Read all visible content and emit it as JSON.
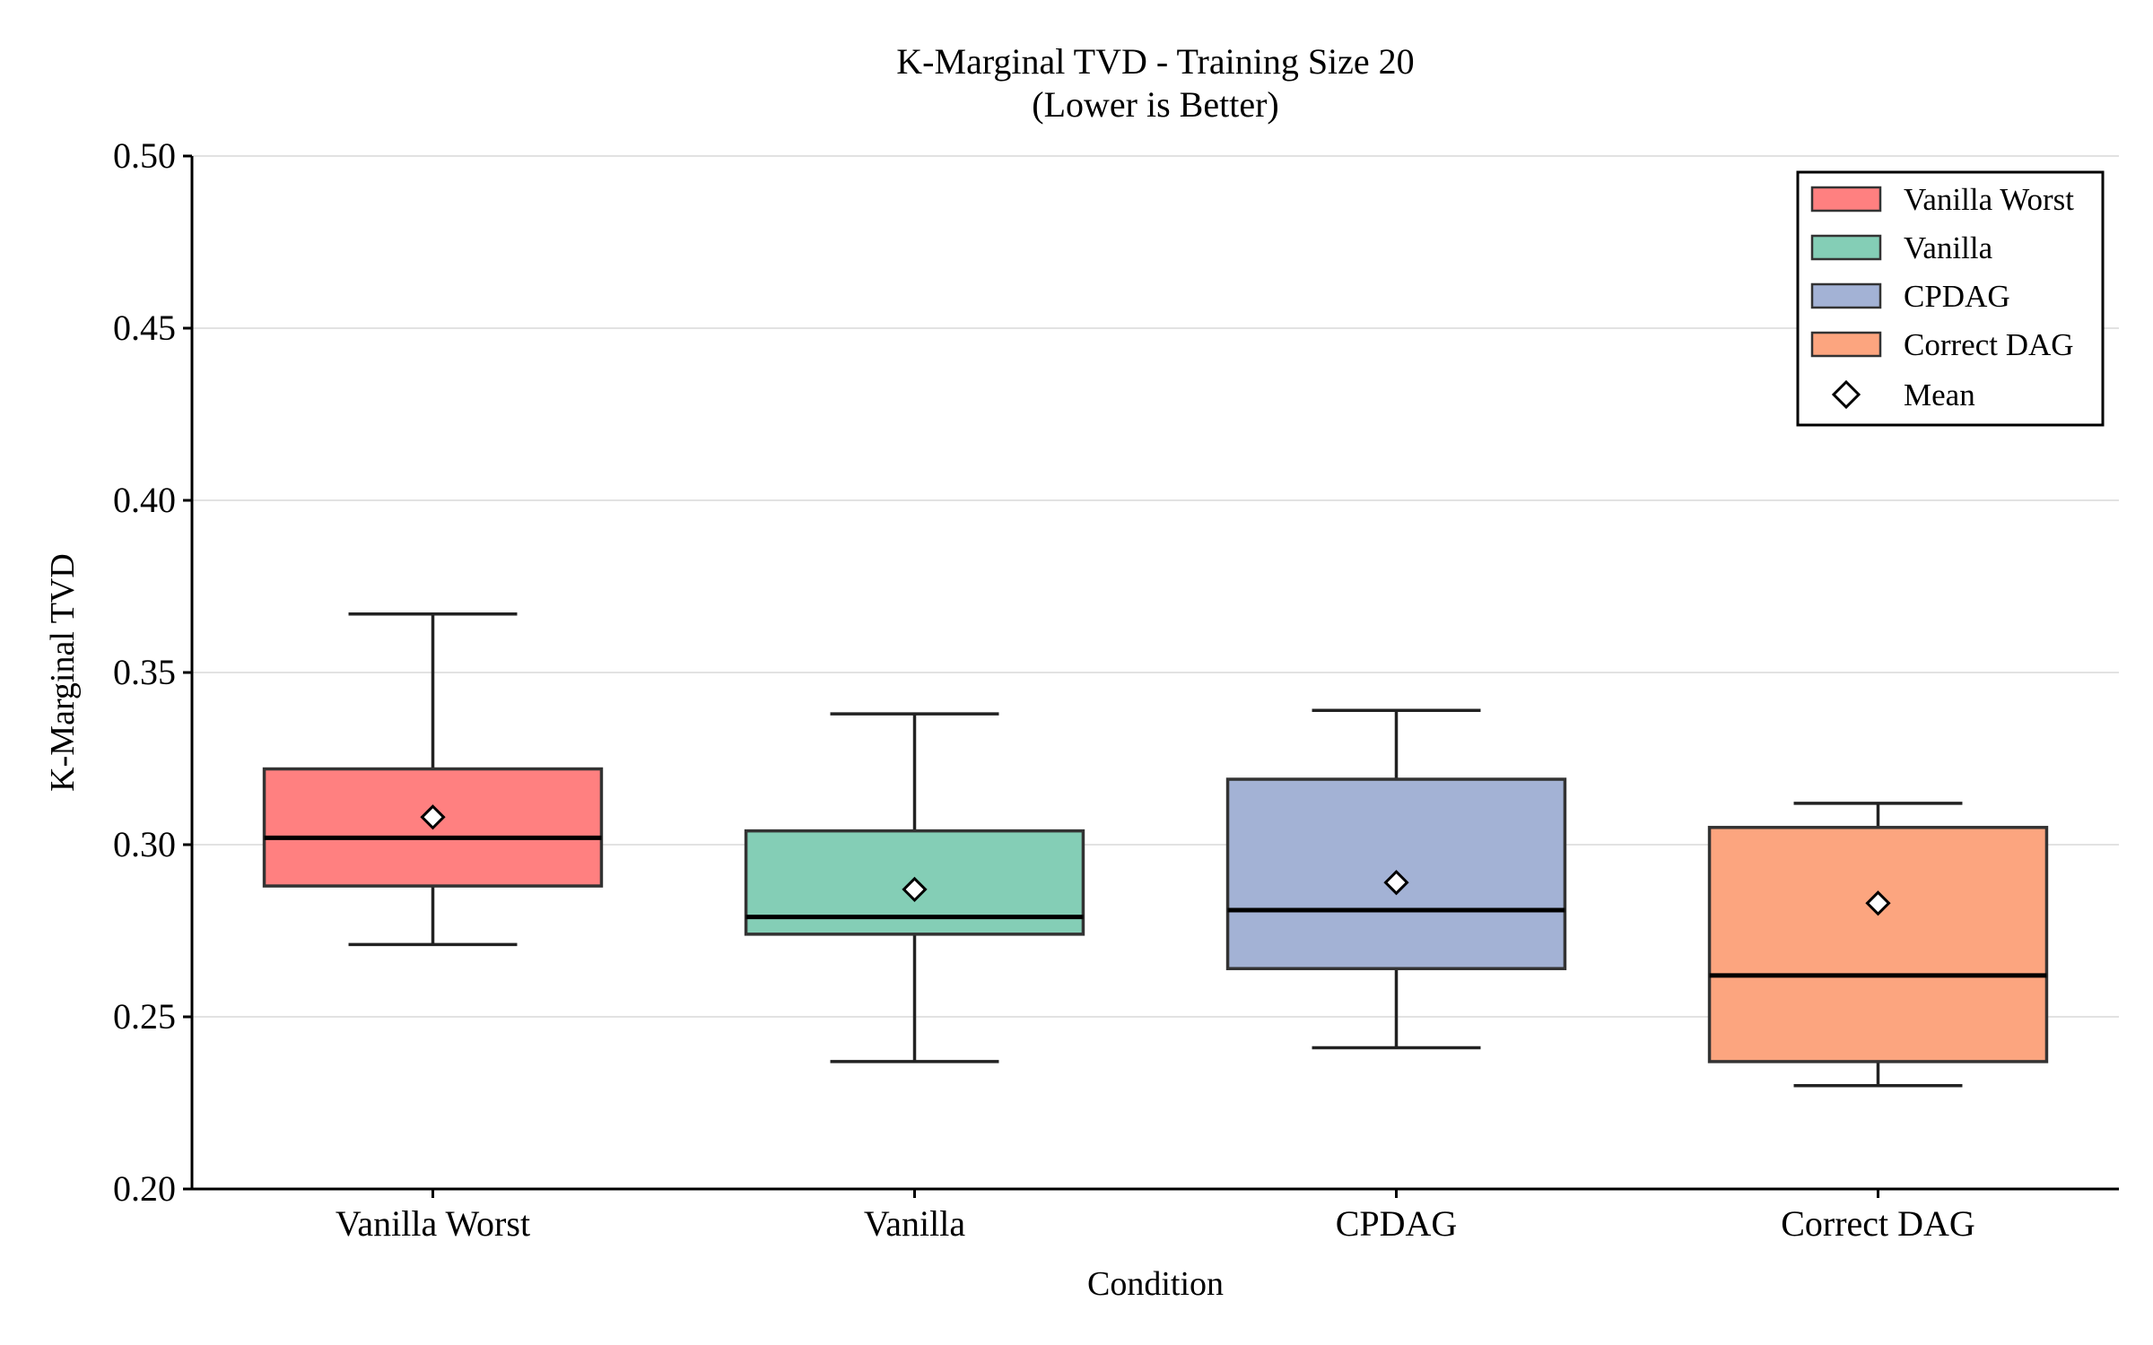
{
  "chart_data": {
    "type": "box",
    "title": "K-Marginal TVD - Training Size 20",
    "subtitle": "(Lower is Better)",
    "xlabel": "Condition",
    "ylabel": "K-Marginal TVD",
    "ylim": [
      0.2,
      0.5
    ],
    "yticks": [
      "0.20",
      "0.25",
      "0.30",
      "0.35",
      "0.40",
      "0.45",
      "0.50"
    ],
    "grid": "horizontal",
    "legend_position": "top-right",
    "categories": [
      "Vanilla Worst",
      "Vanilla",
      "CPDAG",
      "Correct DAG"
    ],
    "series": [
      {
        "name": "Vanilla Worst",
        "color": "#ff8080",
        "whisker_low": 0.271,
        "q1": 0.288,
        "median": 0.302,
        "q3": 0.322,
        "whisker_high": 0.367,
        "mean": 0.308
      },
      {
        "name": "Vanilla",
        "color": "#84ceb6",
        "whisker_low": 0.237,
        "q1": 0.274,
        "median": 0.279,
        "q3": 0.304,
        "whisker_high": 0.338,
        "mean": 0.287
      },
      {
        "name": "CPDAG",
        "color": "#a3b2d5",
        "whisker_low": 0.241,
        "q1": 0.264,
        "median": 0.281,
        "q3": 0.319,
        "whisker_high": 0.339,
        "mean": 0.289
      },
      {
        "name": "Correct DAG",
        "color": "#fca57f",
        "whisker_low": 0.23,
        "q1": 0.237,
        "median": 0.262,
        "q3": 0.305,
        "whisker_high": 0.312,
        "mean": 0.283
      }
    ],
    "legend": {
      "entries": [
        "Vanilla Worst",
        "Vanilla",
        "CPDAG",
        "Correct DAG"
      ],
      "mean_label": "Mean"
    }
  }
}
